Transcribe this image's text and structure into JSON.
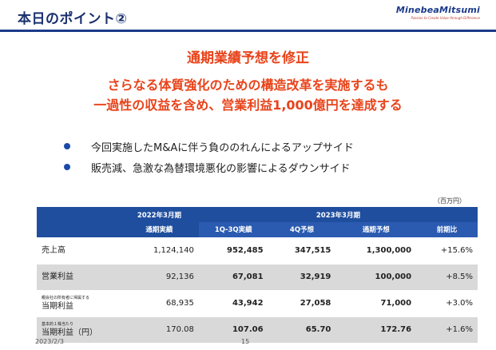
{
  "header": {
    "title": "本日のポイント②",
    "logo": "MinebeaMitsumi",
    "logo_tagline": "Passion to Create Value through Difference"
  },
  "headlines": [
    "通期業績予想を修正",
    "さらなる体質強化のための構造改革を実施するも",
    "一過性の収益を含め、営業利益1,000億円を達成する"
  ],
  "bullets": [
    "今回実施したM&Aに伴う負ののれんによるアップサイド",
    "販売減、急激な為替環境悪化の影響によるダウンサイド"
  ],
  "table": {
    "unit": "（百万円）",
    "group_headers": {
      "fy2022": "2022年3月期",
      "fy2023": "2023年3月期"
    },
    "sub_headers": [
      "通期実績",
      "1Q‐3Q実績",
      "4Q予想",
      "通期予想",
      "前期比"
    ],
    "rows": [
      {
        "label_small": "",
        "label": "売上高",
        "values": [
          "1,124,140",
          "952,485",
          "347,515",
          "1,300,000",
          "+15.6%"
        ]
      },
      {
        "label_small": "",
        "label": "営業利益",
        "values": [
          "92,136",
          "67,081",
          "32,919",
          "100,000",
          "+8.5%"
        ]
      },
      {
        "label_small": "親会社の所有者に帰属する",
        "label": "当期利益",
        "values": [
          "68,935",
          "43,942",
          "27,058",
          "71,000",
          "+3.0%"
        ]
      },
      {
        "label_small": "基本的１株当たり",
        "label": "当期利益（円）",
        "values": [
          "170.08",
          "107.06",
          "65.70",
          "172.76",
          "+1.6%"
        ]
      }
    ]
  },
  "footer": {
    "date": "2023/2/3",
    "page": "15"
  }
}
